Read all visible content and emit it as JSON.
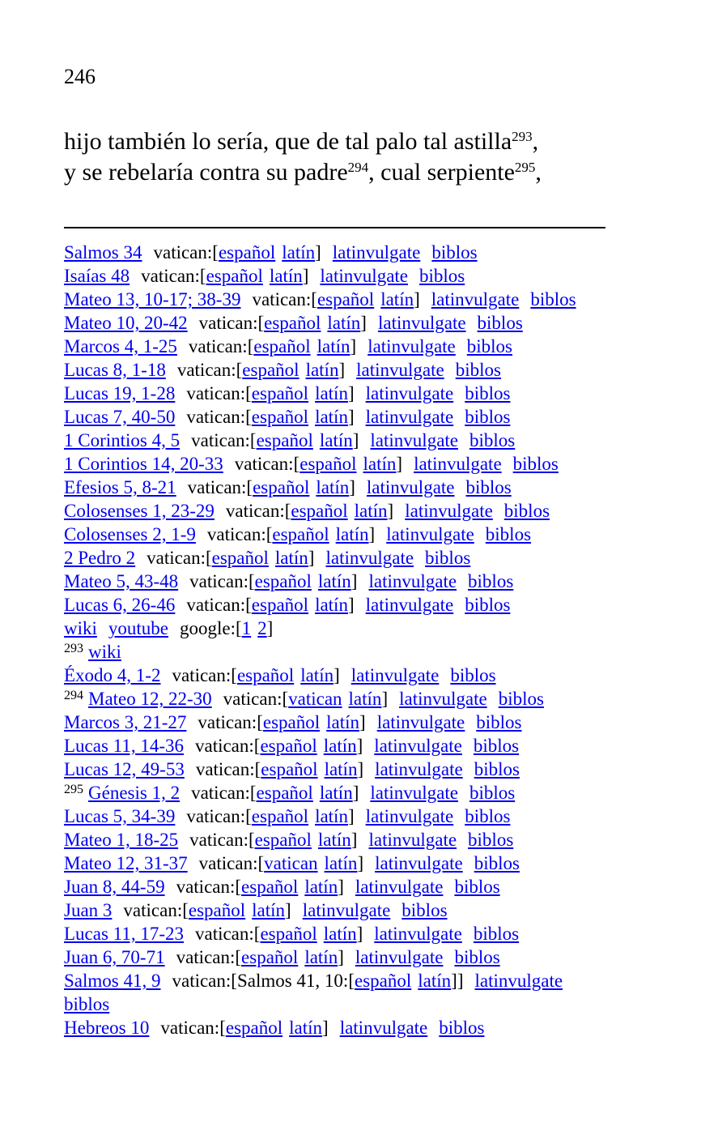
{
  "page_number": "246",
  "body_lines": [
    {
      "text": "hijo también lo sería, que de tal palo tal astilla",
      "sup": "293",
      "after": ","
    },
    {
      "parts": [
        {
          "text": "y se rebelaría contra su padre",
          "sup": "294"
        },
        {
          "text": ", cual serpiente",
          "sup": "295"
        },
        {
          "text": ","
        }
      ]
    }
  ],
  "labels": {
    "vatican": "vatican:",
    "espanol": "español",
    "latin": "latín",
    "latinvulgate": "latinvulgate",
    "biblos": "biblos"
  },
  "notes": [
    {
      "ref": "Salmos 34"
    },
    {
      "ref": "Isaías 48"
    },
    {
      "ref": "Mateo 13, 10-17; 38-39"
    },
    {
      "ref": "Mateo 10, 20-42"
    },
    {
      "ref": "Marcos 4, 1-25"
    },
    {
      "ref": "Lucas 8, 1-18"
    },
    {
      "ref": "Lucas 19, 1-28"
    },
    {
      "ref": "Lucas 7, 40-50"
    },
    {
      "ref": "1 Corintios 4, 5"
    },
    {
      "ref": "1 Corintios 14, 20-33"
    },
    {
      "ref": "Efesios 5, 8-21"
    },
    {
      "ref": "Colosenses 1, 23-29"
    },
    {
      "ref": "Colosenses 2, 1-9"
    },
    {
      "ref": "2 Pedro 2"
    },
    {
      "ref": "Mateo 5, 43-48"
    },
    {
      "ref": "Lucas 6, 26-46"
    },
    {
      "type": "links",
      "wiki": "wiki",
      "youtube": "youtube",
      "google": "google:",
      "g1": "1",
      "g2": "2"
    },
    {
      "type": "wiki",
      "fn": "293",
      "wiki": "wiki"
    },
    {
      "ref": "Éxodo 4, 1-2"
    },
    {
      "ref": "Mateo 12, 22-30",
      "fn": "294",
      "first": "vatican"
    },
    {
      "ref": "Marcos 3, 21-27"
    },
    {
      "ref": "Lucas 11, 14-36"
    },
    {
      "ref": "Lucas 12, 49-53"
    },
    {
      "ref": "Génesis 1, 2",
      "fn": "295"
    },
    {
      "ref": "Lucas 5, 34-39"
    },
    {
      "ref": "Mateo 1, 18-25"
    },
    {
      "ref": "Mateo 12, 31-37",
      "first": "vatican"
    },
    {
      "ref": "Juan 8, 44-59"
    },
    {
      "ref": "Juan 3"
    },
    {
      "ref": "Lucas 11, 17-23"
    },
    {
      "ref": "Juan 6, 70-71"
    },
    {
      "ref": "Salmos 41, 9",
      "nested": "Salmos 41, 10:"
    },
    {
      "ref": "Hebreos 10"
    }
  ]
}
